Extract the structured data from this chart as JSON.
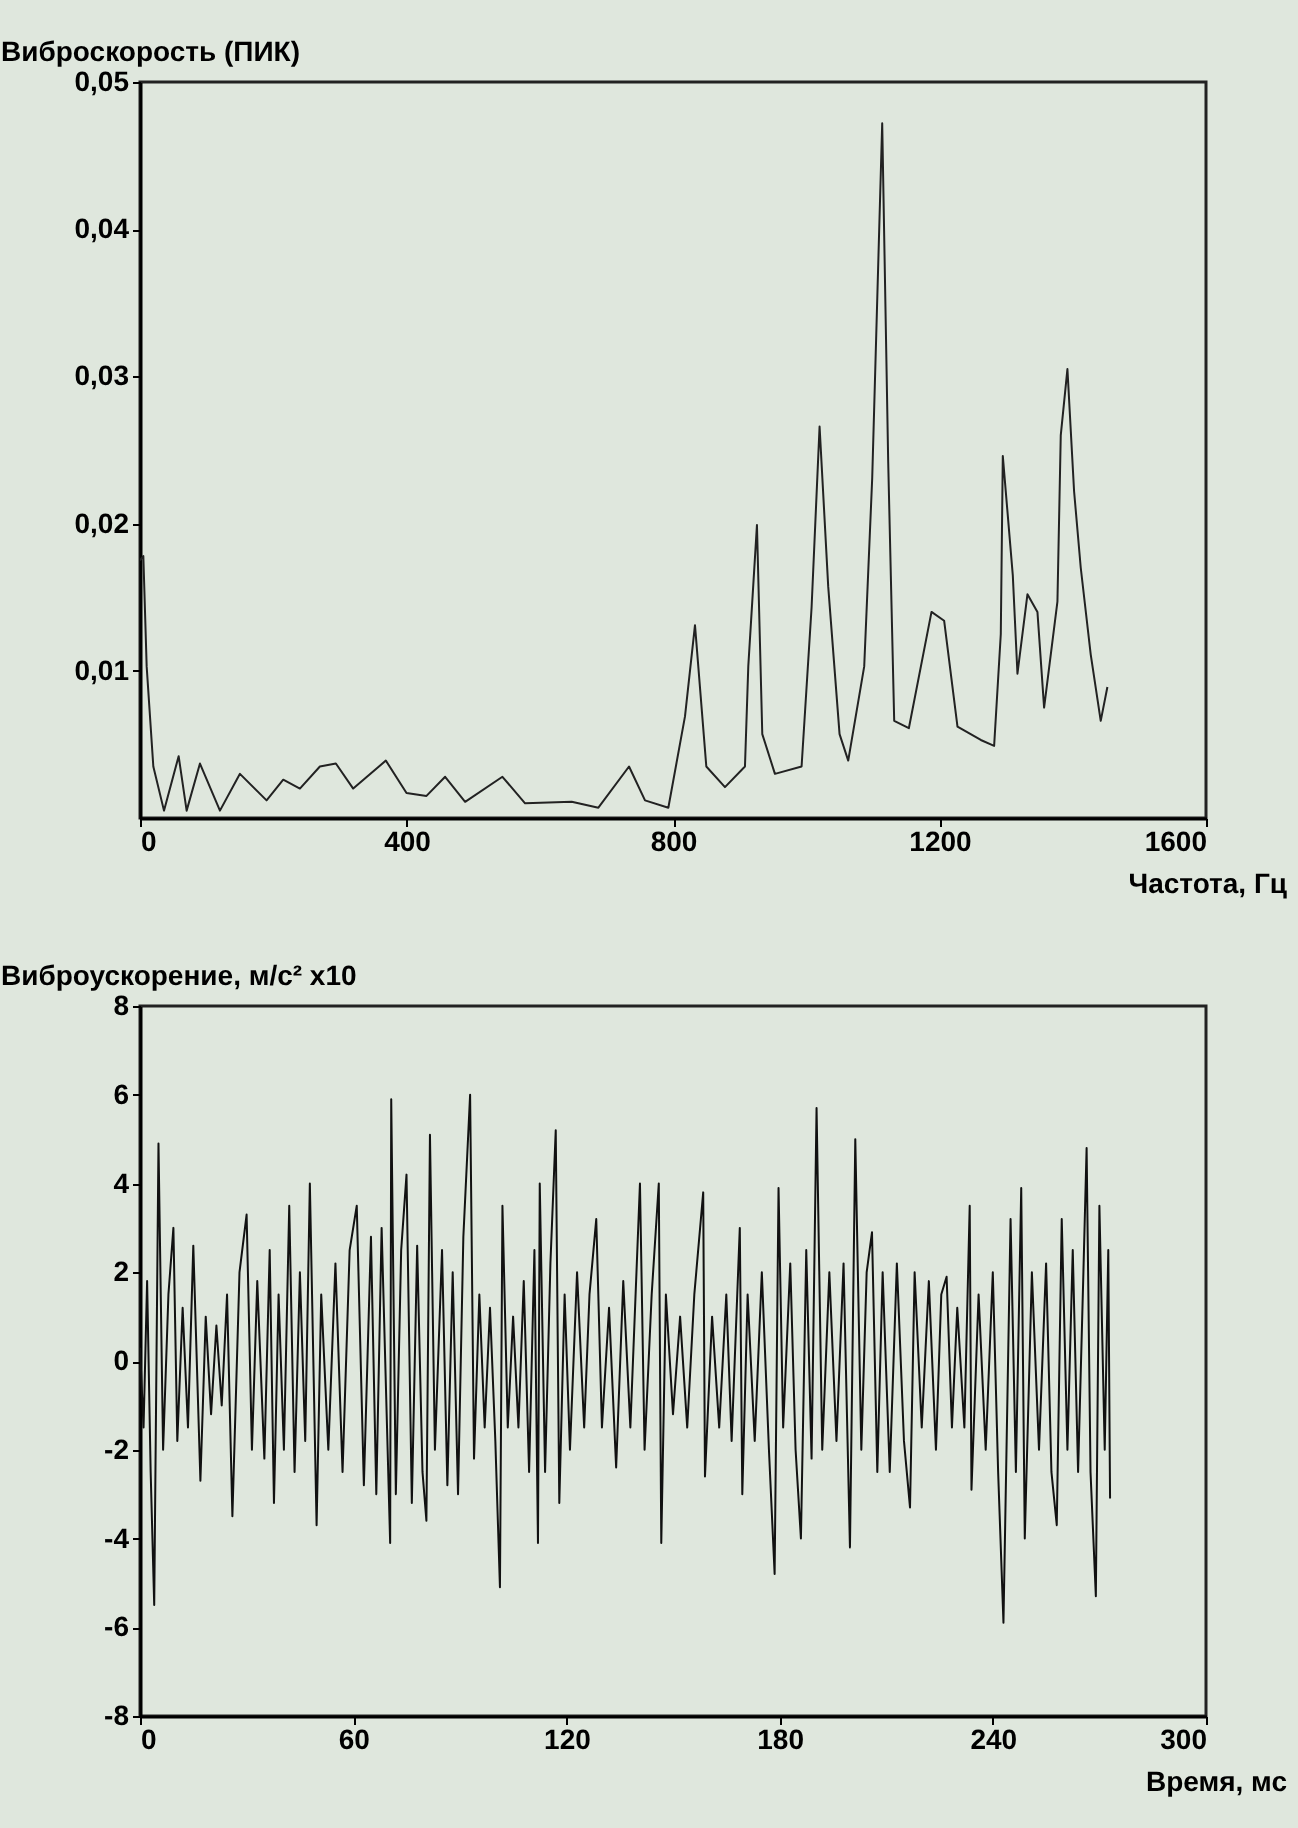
{
  "chart_data": [
    {
      "type": "line",
      "ylabel": "Виброскорость (ПИК)",
      "xlabel": "Частота, Гц",
      "xlim": [
        0,
        1600
      ],
      "xticks": [
        0,
        400,
        800,
        1200,
        1600
      ],
      "ylim": [
        0,
        0.05
      ],
      "yticks": [
        {
          "value": 0.01,
          "label": "0,01"
        },
        {
          "value": 0.02,
          "label": "0,02"
        },
        {
          "value": 0.03,
          "label": "0,03"
        },
        {
          "value": 0.04,
          "label": "0,04"
        },
        {
          "value": 0.05,
          "label": "0,05"
        }
      ],
      "series": [
        {
          "color": "#222222",
          "x": [
            0,
            5,
            10,
            20,
            36,
            58,
            70,
            90,
            120,
            150,
            190,
            215,
            240,
            270,
            294,
            320,
            369,
            400,
            430,
            458,
            488,
            544,
            578,
            648,
            688,
            734,
            758,
            793,
            818,
            833,
            850,
            878,
            908,
            913,
            926,
            934,
            953,
            993,
            1008,
            1020,
            1033,
            1050,
            1063,
            1087,
            1099,
            1114,
            1123,
            1132,
            1154,
            1188,
            1207,
            1227,
            1262,
            1282,
            1292,
            1295,
            1310,
            1317,
            1332,
            1347,
            1357,
            1377,
            1382,
            1392,
            1402,
            1412,
            1427,
            1442,
            1452
          ],
          "values": [
            0.0175,
            0.0178,
            0.0103,
            0.0035,
            0.0005,
            0.0042,
            0.0005,
            0.0037,
            0.0005,
            0.003,
            0.0012,
            0.0026,
            0.002,
            0.0035,
            0.0037,
            0.002,
            0.0039,
            0.0017,
            0.0015,
            0.0028,
            0.0011,
            0.0028,
            0.001,
            0.0011,
            0.0007,
            0.0035,
            0.0012,
            0.0007,
            0.0069,
            0.0131,
            0.0035,
            0.0021,
            0.0035,
            0.0103,
            0.0199,
            0.0057,
            0.003,
            0.0035,
            0.0143,
            0.0266,
            0.0157,
            0.0057,
            0.0039,
            0.0103,
            0.0231,
            0.0472,
            0.0242,
            0.0066,
            0.0061,
            0.014,
            0.0134,
            0.0062,
            0.0053,
            0.0049,
            0.0125,
            0.0246,
            0.0165,
            0.0098,
            0.0152,
            0.014,
            0.0075,
            0.0147,
            0.026,
            0.0305,
            0.0222,
            0.017,
            0.0111,
            0.0066,
            0.0089
          ]
        }
      ]
    },
    {
      "type": "line",
      "ylabel": "Виброускорение, м/с² x10",
      "xlabel": "Время, мс",
      "xlim": [
        0,
        300
      ],
      "xticks": [
        0,
        60,
        120,
        180,
        240,
        300
      ],
      "ylim": [
        -8,
        8
      ],
      "yticks": [
        {
          "value": -8,
          "label": "-8"
        },
        {
          "value": -6,
          "label": "-6"
        },
        {
          "value": -4,
          "label": "-4"
        },
        {
          "value": -2,
          "label": "-2"
        },
        0,
        2,
        4,
        6,
        8
      ],
      "series": [
        {
          "color": "#111111",
          "x": [
            0,
            1,
            2,
            3,
            4,
            5.2,
            6.5,
            8,
            9.4,
            10.5,
            12,
            13.5,
            15,
            17,
            18.5,
            20,
            21.5,
            23,
            24.5,
            26,
            28,
            30,
            31.5,
            33,
            35,
            36.5,
            37.7,
            39,
            40.5,
            42,
            43.5,
            45,
            46.5,
            47.8,
            49.7,
            51,
            53,
            55,
            57,
            59,
            61,
            63,
            65,
            66.5,
            68,
            70.4,
            70.7,
            72,
            73.5,
            75,
            76.5,
            78,
            79.5,
            80.6,
            81.6,
            83,
            85,
            86.5,
            88,
            89.5,
            91,
            92.9,
            94,
            95.5,
            97,
            98.5,
            100,
            101.3,
            102,
            103.5,
            105,
            106.5,
            108,
            109.5,
            111,
            112,
            112.5,
            114,
            115.5,
            117,
            118,
            119.5,
            121,
            123,
            125,
            126.5,
            128.4,
            130,
            132,
            134,
            136,
            138,
            140.7,
            142,
            144,
            146,
            146.7,
            148,
            150,
            152,
            154,
            156,
            158.5,
            159,
            161,
            163,
            165,
            166.5,
            168.8,
            169.5,
            171,
            173,
            175,
            177,
            178.6,
            179.7,
            181,
            183,
            184.5,
            186,
            187.5,
            189,
            190.4,
            192,
            194,
            196,
            198,
            199.8,
            201.3,
            203,
            204.5,
            206,
            207.5,
            209,
            211,
            213,
            215,
            216.7,
            218,
            220,
            222,
            224,
            225.5,
            227,
            228.5,
            230,
            232,
            233.5,
            234,
            236,
            238,
            240,
            241.5,
            243,
            245,
            246.5,
            248,
            249,
            251,
            253,
            255,
            256.5,
            258,
            259.4,
            261,
            262.5,
            264,
            265.5,
            266.4,
            267.5,
            269,
            270,
            271.5,
            272.5,
            273
          ],
          "values": [
            0.3,
            -1.5,
            1.8,
            -2.5,
            -5.5,
            4.9,
            -2.0,
            1.5,
            3.0,
            -1.8,
            1.2,
            -1.5,
            2.6,
            -2.7,
            1.0,
            -1.2,
            0.8,
            -1.0,
            1.5,
            -3.5,
            2.0,
            3.3,
            -2.0,
            1.8,
            -2.2,
            2.5,
            -3.2,
            1.5,
            -2.0,
            3.5,
            -2.5,
            2.0,
            -1.8,
            4.0,
            -3.7,
            1.5,
            -2.0,
            2.2,
            -2.5,
            2.5,
            3.5,
            -2.8,
            2.8,
            -3.0,
            3.0,
            -4.1,
            5.9,
            -3.0,
            2.5,
            4.2,
            -3.2,
            2.6,
            -2.5,
            -3.6,
            5.1,
            -2.0,
            2.5,
            -2.8,
            2.0,
            -3.0,
            2.8,
            6.0,
            -2.2,
            1.5,
            -1.5,
            1.2,
            -1.8,
            -5.1,
            3.5,
            -1.5,
            1.0,
            -1.5,
            1.8,
            -2.5,
            2.5,
            -4.1,
            4.0,
            -2.5,
            2.2,
            5.2,
            -3.2,
            1.5,
            -2.0,
            2.0,
            -1.5,
            1.5,
            3.2,
            -1.5,
            1.2,
            -2.4,
            1.8,
            -1.5,
            4.0,
            -2.0,
            1.5,
            4.0,
            -4.1,
            1.5,
            -1.2,
            1.0,
            -1.5,
            1.5,
            3.8,
            -2.6,
            1.0,
            -1.5,
            1.5,
            -1.8,
            3.0,
            -3.0,
            1.5,
            -1.8,
            2.0,
            -2.0,
            -4.8,
            3.9,
            -1.5,
            2.2,
            -2.0,
            -4.0,
            2.5,
            -2.2,
            5.7,
            -2.0,
            2.0,
            -1.8,
            2.2,
            -4.2,
            5.0,
            -2.0,
            2.0,
            2.9,
            -2.5,
            2.0,
            -2.5,
            2.2,
            -1.8,
            -3.3,
            2.0,
            -1.5,
            1.8,
            -2.0,
            1.5,
            1.9,
            -1.5,
            1.2,
            -1.5,
            3.5,
            -2.9,
            1.5,
            -2.0,
            2.0,
            -2.5,
            -5.9,
            3.2,
            -2.5,
            3.9,
            -4.0,
            2.0,
            -2.0,
            2.2,
            -2.5,
            -3.7,
            3.2,
            -2.0,
            2.5,
            -2.5,
            2.0,
            4.8,
            -2.5,
            -5.3,
            3.5,
            -2.0,
            2.5,
            -3.1
          ]
        }
      ]
    }
  ]
}
